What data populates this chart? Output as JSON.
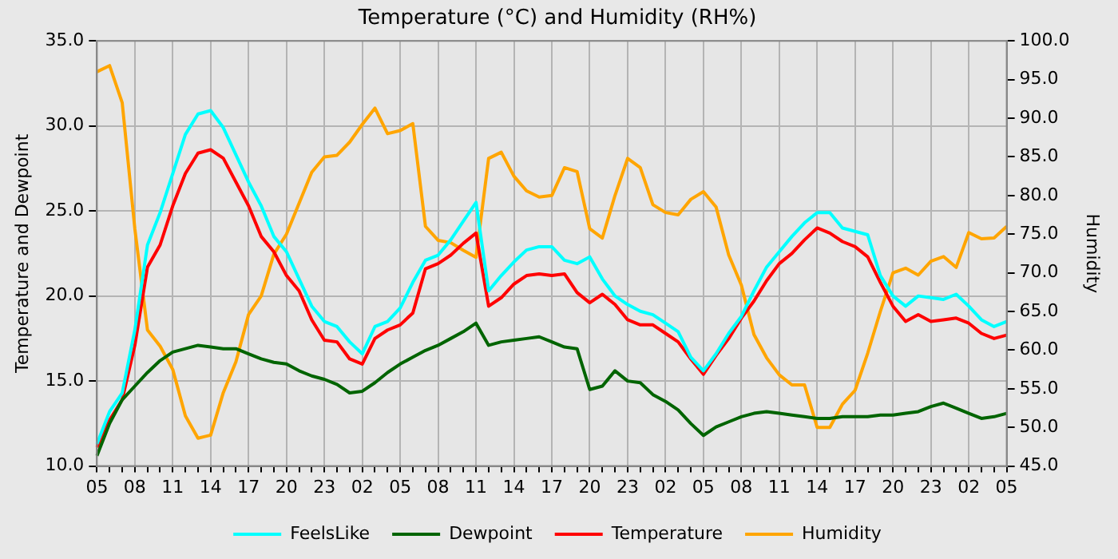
{
  "chart_data": {
    "type": "line",
    "title": "Temperature (°C) and Humidity (RH%)",
    "ylabel": "Temperature and Dewpoint",
    "y2label": "Humidity",
    "categories": [
      "05",
      null,
      null,
      "08",
      null,
      null,
      "11",
      null,
      null,
      "14",
      null,
      null,
      "17",
      null,
      null,
      "20",
      null,
      null,
      "23",
      null,
      null,
      "02",
      null,
      null,
      "05",
      null,
      null,
      "08",
      null,
      null,
      "11",
      null,
      null,
      "14",
      null,
      null,
      "17",
      null,
      null,
      "20",
      null,
      null,
      "23",
      null,
      null,
      "02",
      null,
      null,
      "05",
      null,
      null,
      "08",
      null,
      null,
      "11",
      null,
      null,
      "14",
      null,
      null,
      "17",
      null,
      null,
      "20",
      null,
      null,
      "23",
      null,
      null,
      "02",
      null,
      null,
      "05"
    ],
    "ylim": [
      10,
      35
    ],
    "yticks": [
      {
        "value": 10,
        "label": "10.0"
      },
      {
        "value": 15,
        "label": "15.0"
      },
      {
        "value": 20,
        "label": "20.0"
      },
      {
        "value": 25,
        "label": "25.0"
      },
      {
        "value": 30,
        "label": "30.0"
      },
      {
        "value": 35,
        "label": "35.0"
      }
    ],
    "y2lim": [
      45,
      100
    ],
    "y2ticks": [
      {
        "value": 45,
        "label": "45.0"
      },
      {
        "value": 50,
        "label": "50.0"
      },
      {
        "value": 55,
        "label": "55.0"
      },
      {
        "value": 60,
        "label": "60.0"
      },
      {
        "value": 65,
        "label": "65.0"
      },
      {
        "value": 70,
        "label": "70.0"
      },
      {
        "value": 75,
        "label": "75.0"
      },
      {
        "value": 80,
        "label": "80.0"
      },
      {
        "value": 85,
        "label": "85.0"
      },
      {
        "value": 90,
        "label": "90.0"
      },
      {
        "value": 95,
        "label": "95.0"
      },
      {
        "value": 100,
        "label": "100.0"
      }
    ],
    "grid": true,
    "legend": "bottom",
    "marker": "none",
    "line_style": "solid",
    "series": [
      {
        "name": "FeelsLike",
        "color": "#00ffff",
        "axis": "y",
        "values": [
          11.3,
          13.2,
          14.3,
          18.0,
          23.0,
          24.9,
          27.2,
          29.5,
          30.7,
          30.9,
          29.9,
          28.3,
          26.7,
          25.3,
          23.5,
          22.6,
          21.0,
          19.4,
          18.5,
          18.2,
          17.3,
          16.6,
          18.2,
          18.5,
          19.3,
          20.8,
          22.1,
          22.4,
          23.3,
          24.4,
          25.5,
          20.3,
          21.2,
          22.0,
          22.7,
          22.9,
          22.9,
          22.1,
          21.9,
          22.3,
          21.0,
          20.0,
          19.5,
          19.1,
          18.9,
          18.4,
          17.9,
          16.4,
          15.6,
          16.6,
          17.8,
          18.8,
          20.3,
          21.7,
          22.6,
          23.5,
          24.3,
          24.9,
          24.9,
          24.0,
          23.8,
          23.6,
          21.2,
          20.0,
          19.4,
          20.0,
          19.9,
          19.8,
          20.1,
          19.4,
          18.6,
          18.2,
          18.5
        ]
      },
      {
        "name": "Dewpoint",
        "color": "#006400",
        "axis": "y",
        "values": [
          10.6,
          12.5,
          13.9,
          14.7,
          15.5,
          16.2,
          16.7,
          16.9,
          17.1,
          17.0,
          16.9,
          16.9,
          16.6,
          16.3,
          16.1,
          16.0,
          15.6,
          15.3,
          15.1,
          14.8,
          14.3,
          14.4,
          14.9,
          15.5,
          16.0,
          16.4,
          16.8,
          17.1,
          17.5,
          17.9,
          18.4,
          17.1,
          17.3,
          17.4,
          17.5,
          17.6,
          17.3,
          17.0,
          16.9,
          14.5,
          14.7,
          15.6,
          15.0,
          14.9,
          14.2,
          13.8,
          13.3,
          12.5,
          11.8,
          12.3,
          12.6,
          12.9,
          13.1,
          13.2,
          13.1,
          13.0,
          12.9,
          12.8,
          12.8,
          12.9,
          12.9,
          12.9,
          13.0,
          13.0,
          13.1,
          13.2,
          13.5,
          13.7,
          13.4,
          13.1,
          12.8,
          12.9,
          13.1
        ]
      },
      {
        "name": "Temperature",
        "color": "#ff0000",
        "axis": "y",
        "values": [
          11.1,
          12.7,
          13.9,
          17.1,
          21.7,
          23.0,
          25.3,
          27.2,
          28.4,
          28.6,
          28.1,
          26.7,
          25.3,
          23.5,
          22.6,
          21.2,
          20.3,
          18.6,
          17.4,
          17.3,
          16.3,
          16.0,
          17.5,
          18.0,
          18.3,
          19.0,
          21.6,
          21.9,
          22.4,
          23.1,
          23.7,
          19.4,
          19.9,
          20.7,
          21.2,
          21.3,
          21.2,
          21.3,
          20.2,
          19.6,
          20.1,
          19.5,
          18.6,
          18.3,
          18.3,
          17.8,
          17.3,
          16.3,
          15.4,
          16.5,
          17.5,
          18.7,
          19.7,
          20.9,
          21.9,
          22.5,
          23.3,
          24.0,
          23.7,
          23.2,
          22.9,
          22.3,
          20.8,
          19.4,
          18.5,
          18.9,
          18.5,
          18.6,
          18.7,
          18.4,
          17.8,
          17.5,
          17.7
        ]
      },
      {
        "name": "Humidity",
        "color": "#ffa500",
        "axis": "y2",
        "values": [
          96.0,
          96.8,
          92.0,
          75.7,
          62.6,
          60.5,
          57.5,
          51.5,
          48.6,
          49.0,
          54.5,
          58.5,
          64.6,
          67.0,
          72.4,
          75.0,
          79.0,
          83.0,
          85.0,
          85.2,
          86.9,
          89.2,
          91.3,
          88.0,
          88.4,
          89.3,
          76.0,
          74.2,
          73.9,
          72.9,
          72.0,
          84.8,
          85.6,
          82.5,
          80.6,
          79.8,
          80.0,
          83.6,
          83.1,
          75.7,
          74.5,
          80.0,
          84.8,
          83.6,
          78.8,
          77.8,
          77.5,
          79.5,
          80.5,
          78.5,
          72.3,
          68.4,
          62.0,
          59.0,
          56.8,
          55.5,
          55.5,
          50.0,
          50.0,
          53.0,
          54.8,
          59.6,
          65.0,
          70.0,
          70.6,
          69.7,
          71.5,
          72.1,
          70.7,
          75.2,
          74.4,
          74.5,
          76.0
        ]
      }
    ]
  }
}
